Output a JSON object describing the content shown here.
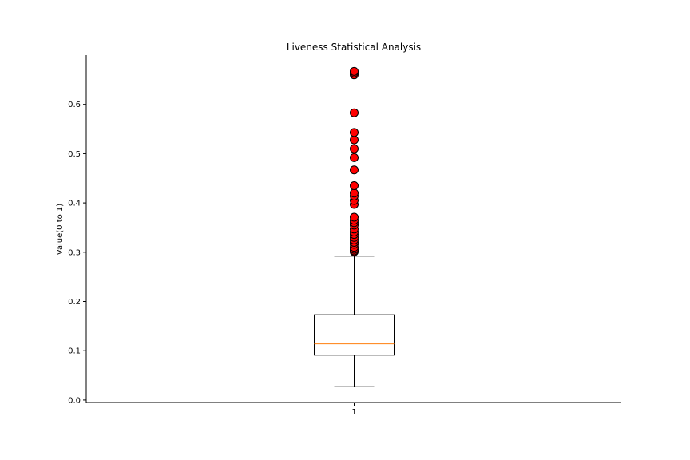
{
  "chart_data": {
    "type": "box",
    "title": "Liveness Statistical Analysis",
    "xlabel": "",
    "ylabel": "Value(0 to 1)",
    "categories": [
      "1"
    ],
    "ylim": [
      -0.005,
      0.7
    ],
    "yticks": [
      0.0,
      0.1,
      0.2,
      0.3,
      0.4,
      0.5,
      0.6
    ],
    "ytick_labels": [
      "0.0",
      "0.1",
      "0.2",
      "0.3",
      "0.4",
      "0.5",
      "0.6"
    ],
    "grid": false,
    "box": {
      "whisker_low": 0.027,
      "q1": 0.091,
      "median": 0.114,
      "q3": 0.173,
      "whisker_high": 0.292
    },
    "outliers": [
      0.301,
      0.303,
      0.306,
      0.31,
      0.316,
      0.32,
      0.325,
      0.33,
      0.336,
      0.341,
      0.347,
      0.355,
      0.36,
      0.365,
      0.371,
      0.397,
      0.405,
      0.414,
      0.42,
      0.435,
      0.467,
      0.492,
      0.51,
      0.528,
      0.543,
      0.583,
      0.66,
      0.664,
      0.667
    ],
    "colors": {
      "median": "#ff7f0e",
      "outlier_fill": "#ff0000",
      "outlier_edge": "#000000",
      "box_edge": "#000000"
    }
  }
}
